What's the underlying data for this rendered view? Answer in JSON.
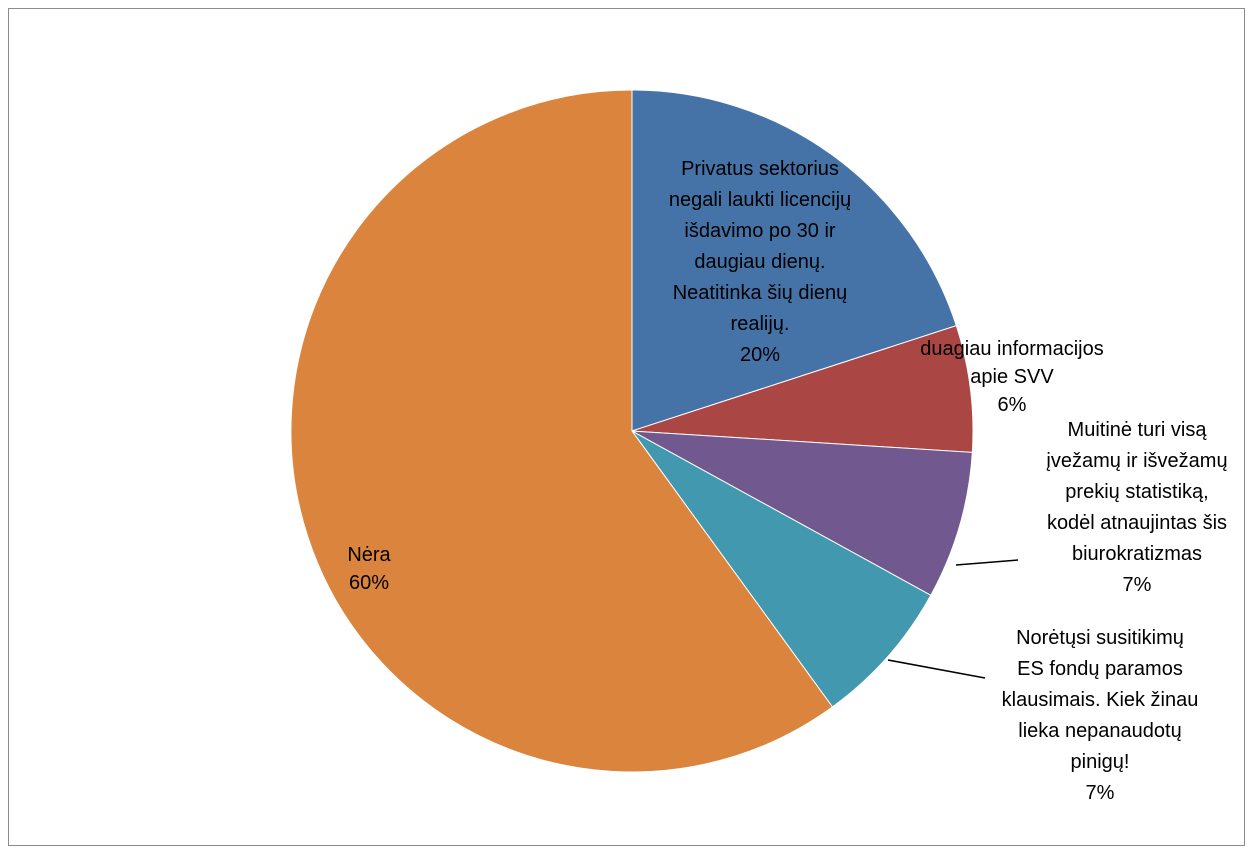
{
  "chart_data": {
    "type": "pie",
    "title": "",
    "start_angle_deg": 0,
    "direction": "clockwise",
    "slices": [
      {
        "label_lines": [
          "Privatus sektorius",
          "negali laukti licencijų",
          "išdavimo po 30 ir",
          "daugiau dienų.",
          "Neatitinka šių dienų",
          "realijų."
        ],
        "percent_label": "20%",
        "value": 20,
        "color": "#4572a7"
      },
      {
        "label_lines": [
          "duagiau informacijos",
          "apie SVV"
        ],
        "percent_label": "6%",
        "value": 6,
        "color": "#aa4643"
      },
      {
        "label_lines": [
          "Muitinė turi visą",
          "įvežamų ir išvežamų",
          "prekių statistiką,",
          "kodėl atnaujintas šis",
          "biurokratizmas"
        ],
        "percent_label": "7%",
        "value": 7,
        "color": "#71588f"
      },
      {
        "label_lines": [
          "Norėtųsi susitikimų",
          "ES fondų paramos",
          "klausimais. Kiek žinau",
          "lieka nepanaudotų",
          "pinigų!"
        ],
        "percent_label": "7%",
        "value": 7,
        "color": "#4198af"
      },
      {
        "label_lines": [
          "Nėra"
        ],
        "percent_label": "60%",
        "value": 60,
        "color": "#db843d"
      }
    ]
  }
}
